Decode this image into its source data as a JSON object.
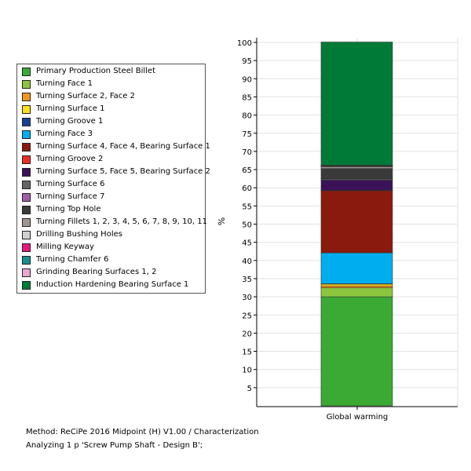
{
  "footer": {
    "method": "Method: ReCiPe 2016 Midpoint (H) V1.00 / Characterization",
    "analyzing": "Analyzing 1 p 'Screw Pump Shaft - Design B';"
  },
  "chart_data": {
    "type": "bar",
    "stacked": true,
    "categories": [
      "Global warming"
    ],
    "xlabel": "",
    "ylabel": "%",
    "ylim": [
      0,
      100
    ],
    "yticks": [
      5,
      10,
      15,
      20,
      25,
      30,
      35,
      40,
      45,
      50,
      55,
      60,
      65,
      70,
      75,
      80,
      85,
      90,
      95,
      100
    ],
    "grid": true,
    "legend_position": "left",
    "series": [
      {
        "name": "Primary Production Steel Billet",
        "color": "#3aaa35",
        "values": [
          30.0
        ]
      },
      {
        "name": "Turning Face 1",
        "color": "#8cc63f",
        "values": [
          2.5
        ]
      },
      {
        "name": "Turning Surface 2, Face 2",
        "color": "#f7941d",
        "values": [
          0.5
        ]
      },
      {
        "name": "Turning Surface 1",
        "color": "#ffe01a",
        "values": [
          0.5
        ]
      },
      {
        "name": "Turning Groove 1",
        "color": "#1b3f94",
        "values": [
          0.1
        ]
      },
      {
        "name": "Turning Face 3",
        "color": "#00aeef",
        "values": [
          8.5
        ]
      },
      {
        "name": "Turning Surface 4, Face 4, Bearing Surface 1",
        "color": "#8b1a0e",
        "values": [
          17.1
        ]
      },
      {
        "name": "Turning Groove 2",
        "color": "#ed2e24",
        "values": [
          0.1
        ]
      },
      {
        "name": "Turning Surface 5, Face 5, Bearing Surface 2",
        "color": "#3b1158",
        "values": [
          2.8
        ]
      },
      {
        "name": "Turning Surface 6",
        "color": "#666666",
        "values": [
          0.3
        ]
      },
      {
        "name": "Turning Surface 7",
        "color": "#a05fa8",
        "values": [
          0.1
        ]
      },
      {
        "name": "Turning Top Hole",
        "color": "#3a3a3a",
        "values": [
          2.8
        ]
      },
      {
        "name": "Turning Fillets 1, 2, 3, 4, 5, 6, 7, 8, 9, 10, 11",
        "color": "#a09591",
        "values": [
          0.5
        ]
      },
      {
        "name": "Drilling Bushing Holes",
        "color": "#d0d0d0",
        "values": [
          0.1
        ]
      },
      {
        "name": "Milling Keyway",
        "color": "#e6197c",
        "values": [
          0.1
        ]
      },
      {
        "name": "Turning Chamfer 6",
        "color": "#1a8f8f",
        "values": [
          0.1
        ]
      },
      {
        "name": "Grinding Bearing Surfaces 1, 2",
        "color": "#e6a8cf",
        "values": [
          0.1
        ]
      },
      {
        "name": "Induction Hardening Bearing Surface 1",
        "color": "#007a37",
        "values": [
          33.9
        ]
      }
    ]
  }
}
